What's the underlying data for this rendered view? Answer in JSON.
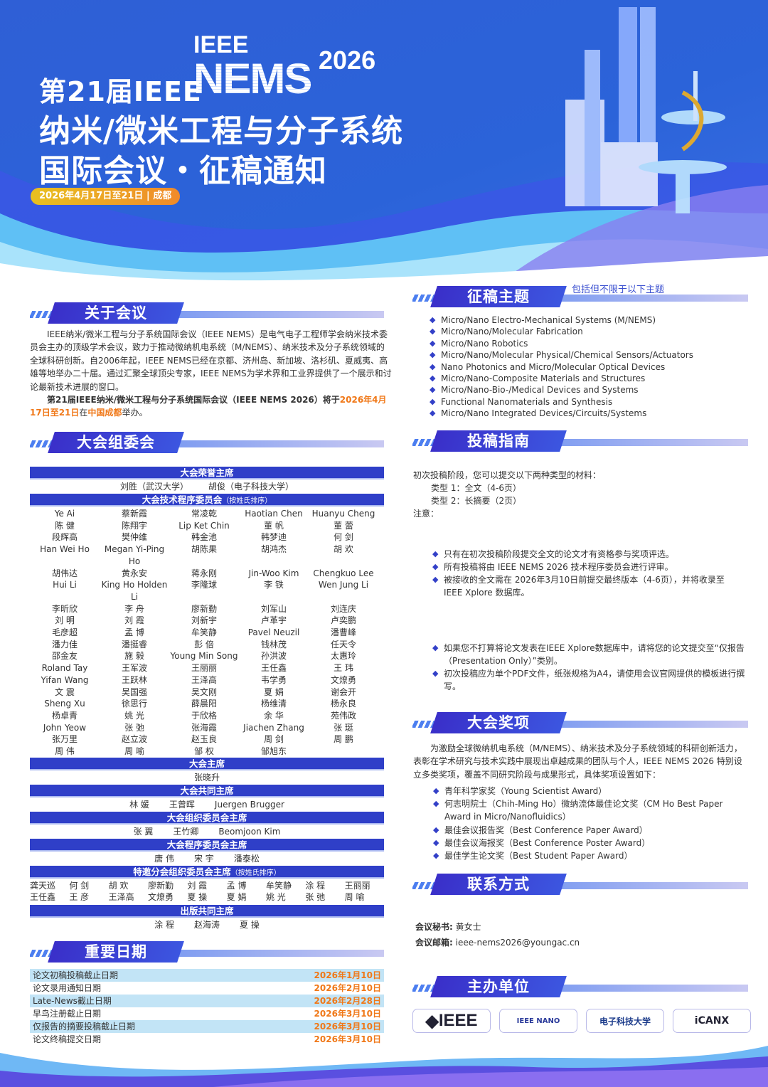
{
  "hero": {
    "ieee": "IEEE",
    "nems": "NEMS",
    "year": "2026",
    "line1": "第21届IEEE",
    "line2": "纳米/微米工程与分子系统",
    "line3": "国际会议・征稿通知",
    "date_pill": "2026年4月17日至21日 | 成都"
  },
  "colors": {
    "primary": "#2f3fc8",
    "accent": "#f07818",
    "hero_bg": "#2f5fd6"
  },
  "about": {
    "title": "关于会议",
    "p1": "IEEE纳米/微米工程与分子系统国际会议（IEEE NEMS）是电气电子工程师学会纳米技术委员会主办的顶级学术会议，致力于推动微纳机电系统（M/NEMS）、纳米技术及分子系统领域的全球科研创新。自2006年起，IEEE NEMS已经在京都、济州岛、新加坡、洛杉矶、夏威夷、高雄等地举办二十届。通过汇聚全球顶尖专家，IEEE NEMS为学术界和工业界提供了一个展示和讨论最新技术进展的窗口。",
    "p2_a": "第21届IEEE纳米/微米工程与分子系统国际会议（IEEE NEMS 2026）将于",
    "p2_date": "2026年4月17日至21日",
    "p2_b": "在",
    "p2_place": "中国成都",
    "p2_c": "举办。"
  },
  "committee": {
    "title": "大会组委会",
    "honorary": {
      "label": "大会荣誉主席",
      "names": [
        "刘胜（武汉大学）",
        "胡俊（电子科技大学）"
      ]
    },
    "tpc": {
      "label": "大会技术程序委员会",
      "note": "（按姓氏排序）",
      "names": [
        "Ye Ai",
        "蔡新霞",
        "常凌乾",
        "Haotian Chen",
        "Huanyu Cheng",
        "陈 健",
        "陈翔宇",
        "Lip Ket Chin",
        "董 帆",
        "董 蕾",
        "段辉高",
        "樊仲维",
        "韩金池",
        "韩梦迪",
        "何 剑",
        "Han Wei Ho",
        "Megan Yi-Ping Ho",
        "胡陈果",
        "胡鸿杰",
        "胡 欢",
        "胡伟达",
        "黄永安",
        "蒋永刚",
        "Jin-Woo Kim",
        "Chengkuo Lee",
        "Hui Li",
        "King Ho Holden Li",
        "李隆球",
        "李 铁",
        "Wen Jung Li",
        "李昕欣",
        "李 舟",
        "廖新勤",
        "刘军山",
        "刘连庆",
        "刘 明",
        "刘 霞",
        "刘新宇",
        "卢革宇",
        "卢奕鹏",
        "毛彦超",
        "孟 博",
        "牟笑静",
        "Pavel Neuzil",
        "潘曹峰",
        "潘力佳",
        "潘挺睿",
        "彭 倍",
        "钱林茂",
        "任天令",
        "邵金友",
        "施 毅",
        "Young Min Song",
        "孙洪波",
        "太惠玲",
        "Roland Tay",
        "王军波",
        "王丽丽",
        "王任鑫",
        "王 玮",
        "Yifan Wang",
        "王跃林",
        "王泽高",
        "韦学勇",
        "文燎勇",
        "文 震",
        "吴国强",
        "吴文刚",
        "夏 娟",
        "谢会开",
        "Sheng Xu",
        "徐思行",
        "薛晨阳",
        "杨维清",
        "杨永良",
        "杨卓青",
        "姚 光",
        "于欣格",
        "余 华",
        "苑伟政",
        "John Yeow",
        "张 弛",
        "张海霞",
        "Jiachen Zhang",
        "张 珽",
        "张万里",
        "赵立波",
        "赵玉良",
        "周 剑",
        "周 鹏",
        "周 伟",
        "周 喻",
        "邹 权",
        "邹旭东",
        ""
      ]
    },
    "general": {
      "label": "大会主席",
      "names": [
        "张晓升"
      ]
    },
    "co_general": {
      "label": "大会共同主席",
      "names": [
        "林 媛",
        "王曾晖",
        "Juergen Brugger"
      ]
    },
    "org": {
      "label": "大会组织委员会主席",
      "names": [
        "张 翼",
        "王竹卿",
        "Beomjoon Kim"
      ]
    },
    "program": {
      "label": "大会程序委员会主席",
      "names": [
        "唐 伟",
        "宋 宇",
        "潘泰松"
      ]
    },
    "special": {
      "label": "特邀分会组织委员会主席",
      "note": "（按姓氏排序）",
      "names": [
        "龚天巡",
        "何 剑",
        "胡 欢",
        "廖新勤",
        "刘 霞",
        "孟 博",
        "牟笑静",
        "涂 程",
        "王丽丽",
        "王任鑫",
        "王 彦",
        "王泽高",
        "文燎勇",
        "夏 操",
        "夏 娟",
        "姚 光",
        "张 弛",
        "周 喻"
      ]
    },
    "publication": {
      "label": "出版共同主席",
      "names": [
        "涂 程",
        "赵海涛",
        "夏 操"
      ]
    }
  },
  "dates": {
    "title": "重要日期",
    "rows": [
      {
        "label": "论文初稿投稿截止日期",
        "date": "2026年1月10日"
      },
      {
        "label": "论文录用通知日期",
        "date": "2026年2月10日"
      },
      {
        "label": "Late-News截止日期",
        "date": "2026年2月28日"
      },
      {
        "label": "早鸟注册截止日期",
        "date": "2026年3月10日"
      },
      {
        "label": "仅报告的摘要投稿截止日期",
        "date": "2026年3月10日"
      },
      {
        "label": "论文终稿提交日期",
        "date": "2026年3月10日"
      }
    ]
  },
  "topics": {
    "title": "征稿主题",
    "note": "包括但不限于以下主题",
    "items": [
      "Micro/Nano Electro-Mechanical Systems (M/NEMS)",
      "Micro/Nano/Molecular Fabrication",
      "Micro/Nano Robotics",
      "Micro/Nano/Molecular Physical/Chemical Sensors/Actuators",
      "Nano Photonics and Micro/Molecular Optical Devices",
      "Micro/Nano-Composite Materials and Structures",
      "Micro/Nano-Bio-/Medical Devices and Systems",
      "Functional Nanomaterials and Synthesis",
      "Micro/Nano Integrated Devices/Circuits/Systems"
    ]
  },
  "guide": {
    "title": "投稿指南",
    "intro": "初次投稿阶段，您可以提交以下两种类型的材料：",
    "type1": "类型 1：全文（4-6页）",
    "type2": "类型 2：长摘要（2页）",
    "note": "注意：",
    "items1": [
      "只有在初次投稿阶段提交全文的论文才有资格参与奖项评选。",
      "所有投稿将由 IEEE NEMS 2026 技术程序委员会进行评审。",
      "被接收的全文需在 2026年3月10日前提交最终版本（4-6页），并将收录至 IEEE Xplore 数据库。"
    ],
    "items2": [
      "如果您不打算将论文发表在IEEE Xplore数据库中，请将您的论文提交至“仅报告（Presentation Only）”类别。",
      "初次投稿应为单个PDF文件，纸张规格为A4，请使用会议官网提供的模板进行撰写。"
    ]
  },
  "awards": {
    "title": "大会奖项",
    "intro": "为激励全球微纳机电系统（M/NEMS）、纳米技术及分子系统领域的科研创新活力，表彰在学术研究与技术实践中展现出卓越成果的团队与个人，IEEE NEMS 2026 特别设立多类奖项，覆盖不同研究阶段与成果形式，具体奖项设置如下：",
    "items": [
      "青年科学家奖（Young Scientist Award）",
      "何志明院士（Chih-Ming Ho）微纳流体最佳论文奖（CM Ho Best Paper Award in Micro/Nanofluidics）",
      "最佳会议报告奖（Best Conference Paper Award）",
      "最佳会议海报奖（Best Conference Poster Award）",
      "最佳学生论文奖（Best Student Paper Award）"
    ]
  },
  "contact": {
    "title": "联系方式",
    "secretary_label": "会议秘书:",
    "secretary": "黄女士",
    "email_label": "会议邮箱:",
    "email": "ieee-nems2026@youngac.cn"
  },
  "sponsors": {
    "title": "主办单位",
    "logos": [
      "IEEE",
      "IEEE NANO",
      "电子科技大学",
      "iCANX"
    ]
  }
}
